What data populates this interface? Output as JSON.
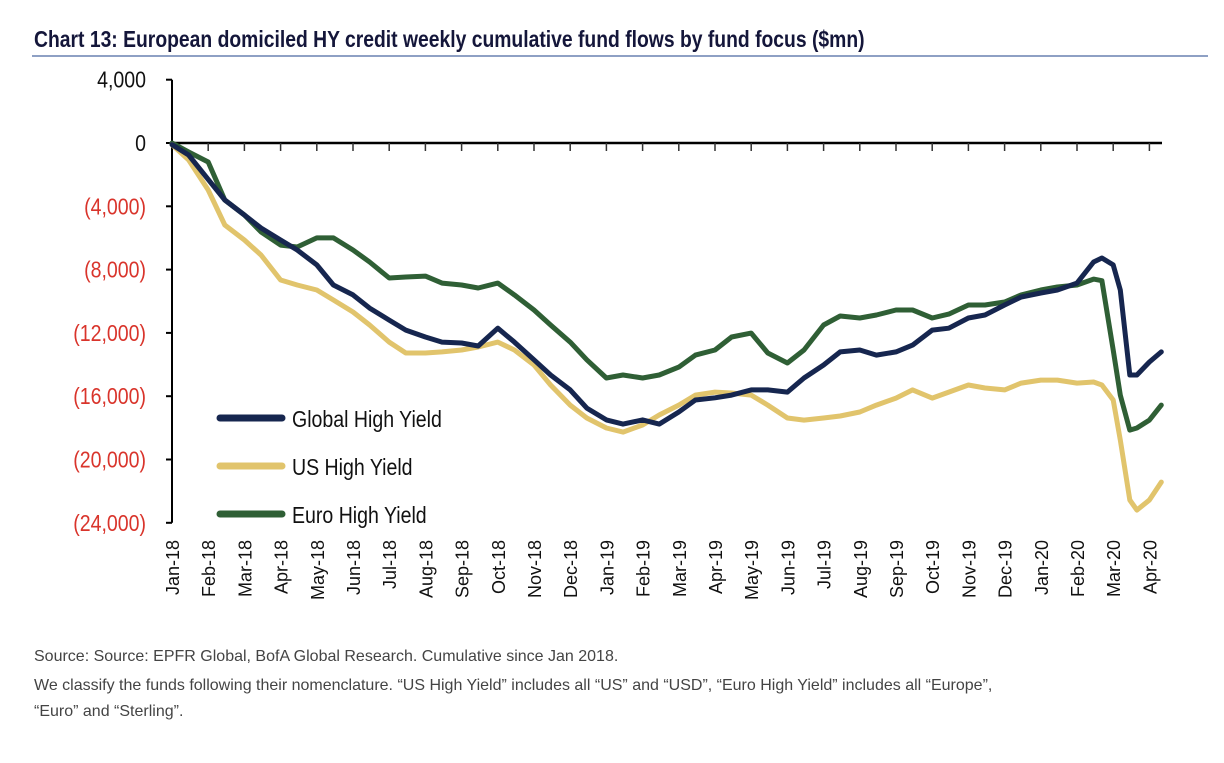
{
  "chart_data": {
    "type": "line",
    "title": "Chart 13: European domiciled HY credit weekly cumulative fund flows by fund focus ($mn)",
    "xlabel": "",
    "ylabel": "",
    "ylim": [
      -24000,
      4000
    ],
    "yticks": [
      4000,
      0,
      -4000,
      -8000,
      -12000,
      -16000,
      -20000,
      -24000
    ],
    "ytick_labels": [
      "4,000",
      "0",
      "(4,000)",
      "(8,000)",
      "(12,000)",
      "(16,000)",
      "(20,000)",
      "(24,000)"
    ],
    "negative_label_color": "#d9342b",
    "xtick_labels": [
      "Jan-18",
      "Feb-18",
      "Mar-18",
      "Apr-18",
      "May-18",
      "Jun-18",
      "Jul-18",
      "Aug-18",
      "Sep-18",
      "Oct-18",
      "Nov-18",
      "Dec-18",
      "Jan-19",
      "Feb-19",
      "Mar-19",
      "Apr-19",
      "May-19",
      "Jun-19",
      "Jul-19",
      "Aug-19",
      "Sep-19",
      "Oct-19",
      "Nov-19",
      "Dec-19",
      "Jan-20",
      "Feb-20",
      "Mar-20",
      "Apr-20"
    ],
    "grid": false,
    "legend_position": "bottom-left",
    "x": [
      "2018-01-01",
      "2018-01-15",
      "2018-02-01",
      "2018-02-15",
      "2018-03-01",
      "2018-03-15",
      "2018-04-01",
      "2018-04-15",
      "2018-05-01",
      "2018-05-15",
      "2018-06-01",
      "2018-06-15",
      "2018-07-01",
      "2018-07-15",
      "2018-08-01",
      "2018-08-15",
      "2018-09-01",
      "2018-09-15",
      "2018-10-01",
      "2018-10-15",
      "2018-11-01",
      "2018-11-15",
      "2018-12-01",
      "2018-12-15",
      "2019-01-01",
      "2019-01-15",
      "2019-02-01",
      "2019-02-15",
      "2019-03-01",
      "2019-03-15",
      "2019-04-01",
      "2019-04-15",
      "2019-05-01",
      "2019-05-15",
      "2019-06-01",
      "2019-06-15",
      "2019-07-01",
      "2019-07-15",
      "2019-08-01",
      "2019-08-15",
      "2019-09-01",
      "2019-09-15",
      "2019-10-01",
      "2019-10-15",
      "2019-11-01",
      "2019-11-15",
      "2019-12-01",
      "2019-12-15",
      "2020-01-01",
      "2020-01-15",
      "2020-02-01",
      "2020-02-15",
      "2020-02-22",
      "2020-03-01",
      "2020-03-07",
      "2020-03-15",
      "2020-03-21",
      "2020-04-01",
      "2020-04-11"
    ],
    "series": [
      {
        "name": "Global High Yield",
        "color": "#16264f",
        "values": [
          -100,
          -760,
          -2300,
          -3600,
          -4550,
          -5370,
          -6130,
          -6760,
          -7700,
          -8970,
          -9600,
          -10430,
          -11190,
          -11820,
          -12260,
          -12580,
          -12640,
          -12830,
          -11700,
          -12580,
          -13700,
          -14660,
          -15600,
          -16750,
          -17500,
          -17760,
          -17500,
          -17760,
          -17000,
          -16240,
          -16100,
          -15930,
          -15600,
          -15600,
          -15740,
          -14850,
          -14030,
          -13200,
          -13080,
          -13400,
          -13200,
          -12770,
          -11820,
          -11700,
          -11060,
          -10870,
          -10240,
          -9730,
          -9480,
          -9290,
          -8850,
          -7520,
          -7270,
          -7700,
          -9290,
          -14660,
          -14660,
          -13840,
          -13200
        ]
      },
      {
        "name": "US High Yield",
        "color": "#e1c46c",
        "values": [
          -100,
          -1070,
          -2970,
          -5180,
          -6130,
          -7080,
          -8660,
          -8970,
          -9290,
          -9920,
          -10680,
          -11500,
          -12580,
          -13270,
          -13270,
          -13200,
          -13080,
          -12890,
          -12580,
          -13080,
          -14030,
          -15290,
          -16560,
          -17380,
          -18010,
          -18270,
          -17820,
          -17190,
          -16560,
          -15930,
          -15740,
          -15800,
          -15930,
          -16560,
          -17380,
          -17510,
          -17380,
          -17250,
          -17000,
          -16560,
          -16120,
          -15600,
          -16120,
          -15740,
          -15290,
          -15480,
          -15600,
          -15170,
          -14980,
          -14980,
          -15170,
          -15100,
          -15290,
          -16240,
          -18770,
          -22560,
          -23200,
          -22560,
          -21430
        ]
      },
      {
        "name": "Euro High Yield",
        "color": "#2f5f35",
        "values": [
          0,
          -570,
          -1200,
          -3600,
          -4550,
          -5620,
          -6450,
          -6570,
          -6000,
          -6000,
          -6760,
          -7520,
          -8530,
          -8470,
          -8410,
          -8850,
          -8970,
          -9160,
          -8850,
          -9600,
          -10550,
          -11500,
          -12580,
          -13700,
          -14850,
          -14660,
          -14850,
          -14660,
          -14160,
          -13400,
          -13080,
          -12260,
          -12010,
          -13270,
          -13900,
          -13080,
          -11500,
          -10930,
          -11060,
          -10870,
          -10550,
          -10550,
          -11060,
          -10810,
          -10240,
          -10240,
          -10050,
          -9600,
          -9290,
          -9100,
          -8970,
          -8600,
          -8700,
          -13080,
          -15930,
          -18140,
          -18010,
          -17510,
          -16560
        ]
      }
    ]
  },
  "notes": {
    "source": "Source: Source: EPFR Global, BofA Global Research. Cumulative since Jan 2018.",
    "classification_1": "We classify the funds following their nomenclature. “US High Yield” includes all “US” and “USD”, “Euro High Yield” includes all “Europe”,",
    "classification_2": "“Euro” and “Sterling”."
  }
}
